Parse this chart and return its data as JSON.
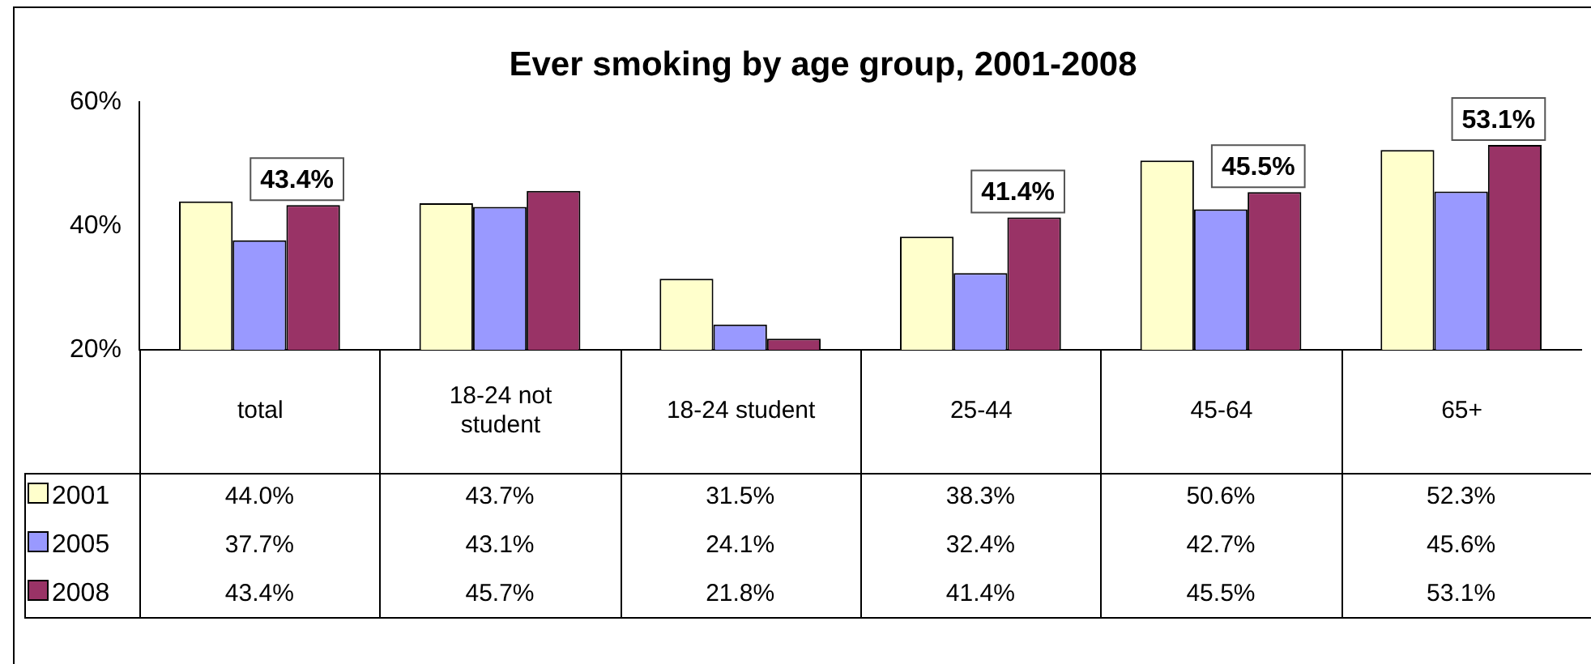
{
  "chart_data": {
    "type": "bar",
    "title": "Ever smoking by age group, 2001-2008",
    "categories": [
      "total",
      "18-24 not student",
      "18-24 student",
      "25-44",
      "45-64",
      "65+"
    ],
    "series": [
      {
        "name": "2001",
        "color": "#ffffcc",
        "values": [
          44.0,
          43.7,
          31.5,
          38.3,
          50.6,
          52.3
        ],
        "value_labels": [
          "44.0%",
          "43.7%",
          "31.5%",
          "38.3%",
          "50.6%",
          "52.3%"
        ]
      },
      {
        "name": "2005",
        "color": "#9999ff",
        "values": [
          37.7,
          43.1,
          24.1,
          32.4,
          42.7,
          45.6
        ],
        "value_labels": [
          "37.7%",
          "43.1%",
          "24.1%",
          "32.4%",
          "42.7%",
          "45.6%"
        ]
      },
      {
        "name": "2008",
        "color": "#993366",
        "values": [
          43.4,
          45.7,
          21.8,
          41.4,
          45.5,
          53.1
        ],
        "value_labels": [
          "43.4%",
          "45.7%",
          "21.8%",
          "41.4%",
          "45.5%",
          "53.1%"
        ]
      }
    ],
    "ylim": [
      20,
      60
    ],
    "yticks": [
      {
        "value": 20,
        "label": "20%"
      },
      {
        "value": 40,
        "label": "40%"
      },
      {
        "value": 60,
        "label": "60%"
      }
    ],
    "grid": false,
    "legend": "bottom left",
    "annotations": [
      "43.4%",
      "41.4%",
      "45.5%",
      "53.1%"
    ]
  }
}
